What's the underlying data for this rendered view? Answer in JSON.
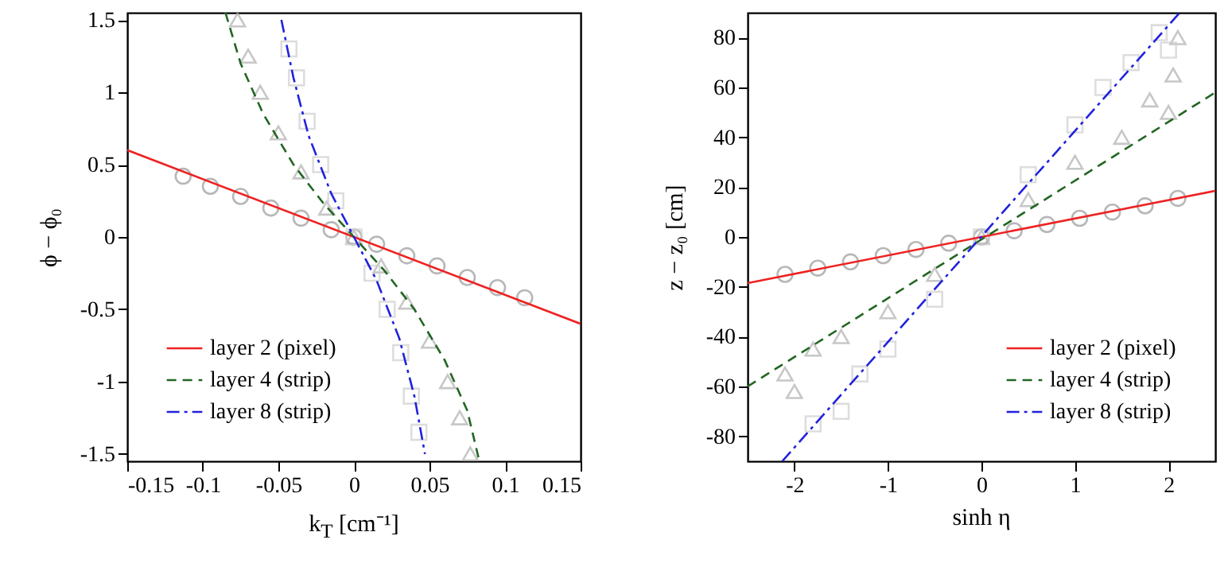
{
  "chart_data": [
    {
      "type": "scatter",
      "xlabel": "k$_{T}$ [cm⁻¹]",
      "ylabel": "ϕ − ϕ₀",
      "xlim": [
        -0.15,
        0.15
      ],
      "ylim": [
        -1.55,
        1.55
      ],
      "xticks": [
        -0.15,
        -0.1,
        -0.05,
        0,
        0.05,
        0.1,
        0.15
      ],
      "yticks": [
        -1.5,
        -1,
        -0.5,
        0,
        0.5,
        1,
        1.5
      ],
      "legend": "bottom left",
      "series": [
        {
          "type": "scatter",
          "marker": "circle",
          "color": "#9a9a9a",
          "x": [
            -0.113,
            -0.095,
            -0.075,
            -0.055,
            -0.035,
            -0.015,
            0,
            0.015,
            0.035,
            0.055,
            0.075,
            0.095,
            0.113
          ],
          "values": [
            0.42,
            0.35,
            0.28,
            0.2,
            0.13,
            0.05,
            0,
            -0.05,
            -0.13,
            -0.2,
            -0.28,
            -0.35,
            -0.42
          ]
        },
        {
          "type": "scatter",
          "marker": "triangle",
          "color": "#b0b0b0",
          "x": [
            -0.077,
            -0.07,
            -0.062,
            -0.05,
            -0.035,
            -0.018,
            0,
            0.018,
            0.035,
            0.05,
            0.062,
            0.07,
            0.077
          ],
          "values": [
            1.5,
            1.25,
            1.0,
            0.72,
            0.45,
            0.2,
            0,
            -0.2,
            -0.45,
            -0.72,
            -1.0,
            -1.25,
            -1.5
          ]
        },
        {
          "type": "scatter",
          "marker": "square",
          "color": "#d0d0d0",
          "x": [
            -0.043,
            -0.038,
            -0.031,
            -0.022,
            -0.012,
            0,
            0.012,
            0.022,
            0.031,
            0.038,
            0.043
          ],
          "values": [
            1.3,
            1.1,
            0.8,
            0.5,
            0.25,
            0,
            -0.25,
            -0.5,
            -0.8,
            -1.1,
            -1.35
          ]
        },
        {
          "type": "line",
          "name": "layer 2 (pixel)",
          "color": "#ee2222",
          "line_style": "solid",
          "x": [
            -0.15,
            0.15
          ],
          "values": [
            0.6,
            -0.6
          ]
        },
        {
          "type": "line",
          "name": "layer 4 (strip)",
          "color": "#226622",
          "line_style": "dashed",
          "x": [
            -0.085,
            -0.075,
            -0.06,
            -0.04,
            -0.02,
            0,
            0.02,
            0.04,
            0.06,
            0.075,
            0.083
          ],
          "values": [
            1.55,
            1.2,
            0.85,
            0.5,
            0.23,
            0,
            -0.23,
            -0.5,
            -0.85,
            -1.2,
            -1.55
          ]
        },
        {
          "type": "line",
          "name": "layer 8 (strip)",
          "color": "#2222dd",
          "line_style": "dashdot",
          "x": [
            -0.048,
            -0.04,
            -0.03,
            -0.015,
            0,
            0.015,
            0.03,
            0.04,
            0.047
          ],
          "values": [
            1.5,
            1.1,
            0.7,
            0.3,
            0,
            -0.3,
            -0.7,
            -1.1,
            -1.5
          ]
        }
      ]
    },
    {
      "type": "scatter",
      "xlabel": "sinh η",
      "ylabel": "z − z₀ [cm]",
      "xlim": [
        -2.5,
        2.5
      ],
      "ylim": [
        -90,
        90
      ],
      "xticks": [
        -2,
        -1,
        0,
        1,
        2
      ],
      "yticks": [
        -80,
        -60,
        -40,
        -20,
        0,
        20,
        40,
        60,
        80
      ],
      "legend": "bottom right",
      "series": [
        {
          "type": "scatter",
          "marker": "circle",
          "color": "#9a9a9a",
          "x": [
            -2.1,
            -1.75,
            -1.4,
            -1.05,
            -0.7,
            -0.35,
            0,
            0.35,
            0.7,
            1.05,
            1.4,
            1.75,
            2.1
          ],
          "values": [
            -15,
            -12.5,
            -10,
            -7.5,
            -5,
            -2.5,
            0,
            2.5,
            5,
            7.5,
            10,
            12.5,
            15.5
          ]
        },
        {
          "type": "scatter",
          "marker": "triangle",
          "color": "#b0b0b0",
          "x": [
            -2.1,
            -2.0,
            -1.8,
            -1.5,
            -1.0,
            -0.5,
            0,
            0.5,
            1.0,
            1.5,
            1.8,
            2.0,
            2.05,
            2.1
          ],
          "values": [
            -55,
            -62,
            -45,
            -40,
            -30,
            -15,
            0,
            15,
            30,
            40,
            55,
            50,
            65,
            80
          ]
        },
        {
          "type": "scatter",
          "marker": "square",
          "color": "#d0d0d0",
          "x": [
            -1.8,
            -1.5,
            -1.3,
            -1.0,
            -0.5,
            0,
            0.5,
            1.0,
            1.3,
            1.6,
            1.9,
            2.0
          ],
          "values": [
            -75,
            -70,
            -55,
            -45,
            -25,
            0,
            25,
            45,
            60,
            70,
            82,
            75
          ]
        },
        {
          "type": "line",
          "name": "layer 2 (pixel)",
          "color": "#ee2222",
          "line_style": "solid",
          "x": [
            -2.5,
            2.5
          ],
          "values": [
            -18.5,
            18.5
          ]
        },
        {
          "type": "line",
          "name": "layer 4 (strip)",
          "color": "#226622",
          "line_style": "dashed",
          "x": [
            -2.5,
            2.5
          ],
          "values": [
            -60,
            58
          ]
        },
        {
          "type": "line",
          "name": "layer 8 (strip)",
          "color": "#2222dd",
          "line_style": "dashdot",
          "x": [
            -2.13,
            2.12
          ],
          "values": [
            -90,
            90
          ]
        }
      ]
    }
  ]
}
